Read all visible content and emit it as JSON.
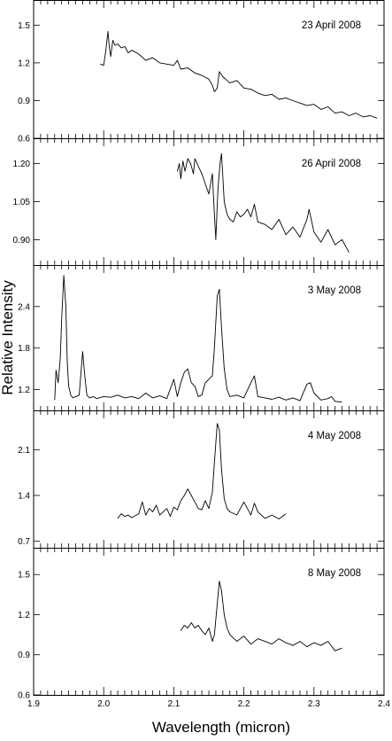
{
  "chart_data": {
    "type": "line",
    "xlabel": "Wavelength (micron)",
    "ylabel": "Relative Intensity",
    "xlim": [
      1.9,
      2.4
    ],
    "x_ticks": [
      "1.9",
      "2.0",
      "2.1",
      "2.2",
      "2.3",
      "2.4"
    ],
    "panels": [
      {
        "name": "23 April 2008",
        "ylim": [
          0.6,
          1.7
        ],
        "y_ticks": [
          "0.6",
          "0.9",
          "1.2",
          "1.5"
        ],
        "x": [
          1.995,
          2.0,
          2.003,
          2.006,
          2.008,
          2.01,
          2.013,
          2.016,
          2.02,
          2.025,
          2.03,
          2.035,
          2.04,
          2.05,
          2.06,
          2.07,
          2.08,
          2.09,
          2.1,
          2.105,
          2.11,
          2.12,
          2.13,
          2.14,
          2.15,
          2.155,
          2.158,
          2.162,
          2.165,
          2.17,
          2.18,
          2.19,
          2.2,
          2.21,
          2.22,
          2.23,
          2.24,
          2.25,
          2.26,
          2.27,
          2.28,
          2.29,
          2.3,
          2.31,
          2.32,
          2.33,
          2.34,
          2.35,
          2.36,
          2.37,
          2.38,
          2.39
        ],
        "y": [
          1.19,
          1.18,
          1.3,
          1.45,
          1.33,
          1.25,
          1.38,
          1.34,
          1.35,
          1.32,
          1.33,
          1.28,
          1.3,
          1.27,
          1.22,
          1.24,
          1.2,
          1.19,
          1.18,
          1.22,
          1.15,
          1.16,
          1.12,
          1.1,
          1.07,
          1.02,
          0.97,
          1.0,
          1.13,
          1.09,
          1.04,
          1.06,
          1.0,
          0.99,
          0.96,
          0.94,
          0.95,
          0.91,
          0.92,
          0.9,
          0.88,
          0.86,
          0.87,
          0.83,
          0.85,
          0.8,
          0.81,
          0.78,
          0.8,
          0.77,
          0.78,
          0.76
        ]
      },
      {
        "name": "26 April 2008",
        "ylim": [
          0.8,
          1.3
        ],
        "y_ticks": [
          "0.90",
          "1.05",
          "1.20"
        ],
        "x": [
          2.105,
          2.108,
          2.11,
          2.113,
          2.116,
          2.12,
          2.124,
          2.128,
          2.13,
          2.135,
          2.14,
          2.145,
          2.15,
          2.155,
          2.158,
          2.16,
          2.163,
          2.166,
          2.168,
          2.17,
          2.172,
          2.176,
          2.18,
          2.185,
          2.19,
          2.195,
          2.2,
          2.205,
          2.21,
          2.215,
          2.22,
          2.23,
          2.24,
          2.25,
          2.26,
          2.27,
          2.28,
          2.29,
          2.293,
          2.3,
          2.31,
          2.32,
          2.33,
          2.34,
          2.35
        ],
        "y": [
          1.17,
          1.2,
          1.14,
          1.21,
          1.17,
          1.22,
          1.2,
          1.16,
          1.22,
          1.19,
          1.16,
          1.12,
          1.08,
          1.16,
          1.0,
          0.9,
          1.1,
          1.2,
          1.24,
          1.15,
          1.05,
          1.0,
          0.98,
          0.97,
          1.01,
          0.99,
          1.0,
          1.02,
          0.99,
          1.04,
          0.97,
          0.96,
          0.94,
          0.98,
          0.92,
          0.95,
          0.91,
          0.98,
          1.02,
          0.93,
          0.89,
          0.94,
          0.88,
          0.9,
          0.85
        ]
      },
      {
        "name": "3 May 2008",
        "ylim": [
          0.9,
          3.0
        ],
        "y_ticks": [
          "1.2",
          "1.8",
          "2.4"
        ],
        "x": [
          1.93,
          1.932,
          1.935,
          1.938,
          1.94,
          1.943,
          1.946,
          1.948,
          1.95,
          1.953,
          1.956,
          1.96,
          1.965,
          1.97,
          1.973,
          1.976,
          1.98,
          1.985,
          1.99,
          2.0,
          2.01,
          2.02,
          2.03,
          2.04,
          2.05,
          2.06,
          2.07,
          2.08,
          2.09,
          2.1,
          2.105,
          2.11,
          2.115,
          2.12,
          2.125,
          2.13,
          2.135,
          2.14,
          2.145,
          2.15,
          2.155,
          2.158,
          2.162,
          2.165,
          2.168,
          2.172,
          2.176,
          2.18,
          2.19,
          2.2,
          2.21,
          2.215,
          2.22,
          2.23,
          2.24,
          2.25,
          2.26,
          2.27,
          2.28,
          2.29,
          2.295,
          2.3,
          2.31,
          2.32,
          2.325,
          2.33,
          2.34
        ],
        "y": [
          1.05,
          1.48,
          1.3,
          1.65,
          2.22,
          2.85,
          2.4,
          1.6,
          1.25,
          1.12,
          1.08,
          1.1,
          1.12,
          1.75,
          1.4,
          1.12,
          1.08,
          1.1,
          1.07,
          1.1,
          1.09,
          1.12,
          1.08,
          1.1,
          1.07,
          1.15,
          1.08,
          1.11,
          1.07,
          1.35,
          1.1,
          1.3,
          1.45,
          1.5,
          1.3,
          1.25,
          1.1,
          1.12,
          1.3,
          1.35,
          1.4,
          1.8,
          2.55,
          2.65,
          2.1,
          1.5,
          1.2,
          1.1,
          1.12,
          1.08,
          1.3,
          1.4,
          1.1,
          1.08,
          1.06,
          1.09,
          1.05,
          1.08,
          1.04,
          1.28,
          1.3,
          1.15,
          1.05,
          1.07,
          1.1,
          1.03,
          1.02
        ]
      },
      {
        "name": "4 May 2008",
        "ylim": [
          0.6,
          2.7
        ],
        "y_ticks": [
          "0.7",
          "1.4",
          "2.1"
        ],
        "x": [
          2.02,
          2.025,
          2.03,
          2.035,
          2.04,
          2.05,
          2.055,
          2.06,
          2.065,
          2.07,
          2.075,
          2.08,
          2.09,
          2.095,
          2.1,
          2.105,
          2.11,
          2.115,
          2.12,
          2.125,
          2.13,
          2.135,
          2.14,
          2.145,
          2.15,
          2.155,
          2.158,
          2.162,
          2.165,
          2.168,
          2.172,
          2.176,
          2.18,
          2.19,
          2.2,
          2.205,
          2.21,
          2.215,
          2.22,
          2.23,
          2.24,
          2.25,
          2.255,
          2.26
        ],
        "y": [
          1.05,
          1.12,
          1.08,
          1.1,
          1.06,
          1.12,
          1.3,
          1.1,
          1.2,
          1.15,
          1.25,
          1.1,
          1.2,
          1.08,
          1.22,
          1.18,
          1.32,
          1.4,
          1.5,
          1.4,
          1.3,
          1.2,
          1.18,
          1.32,
          1.2,
          1.45,
          1.9,
          2.5,
          2.4,
          1.8,
          1.35,
          1.2,
          1.15,
          1.1,
          1.3,
          1.2,
          1.1,
          1.28,
          1.15,
          1.05,
          1.1,
          1.04,
          1.08,
          1.12
        ]
      },
      {
        "name": "8 May 2008",
        "ylim": [
          0.6,
          1.7
        ],
        "y_ticks": [
          "0.6",
          "0.9",
          "1.2",
          "1.5"
        ],
        "x": [
          2.11,
          2.115,
          2.12,
          2.125,
          2.13,
          2.135,
          2.14,
          2.145,
          2.15,
          2.155,
          2.158,
          2.162,
          2.165,
          2.168,
          2.172,
          2.176,
          2.18,
          2.19,
          2.2,
          2.21,
          2.22,
          2.23,
          2.24,
          2.25,
          2.26,
          2.27,
          2.28,
          2.29,
          2.3,
          2.31,
          2.32,
          2.33,
          2.34
        ],
        "y": [
          1.08,
          1.12,
          1.1,
          1.14,
          1.1,
          1.12,
          1.08,
          1.05,
          1.1,
          1.0,
          1.05,
          1.28,
          1.45,
          1.38,
          1.2,
          1.1,
          1.05,
          1.0,
          1.04,
          0.98,
          1.02,
          1.0,
          0.98,
          1.02,
          0.99,
          0.97,
          1.0,
          0.96,
          0.99,
          0.97,
          1.0,
          0.93,
          0.95
        ]
      }
    ]
  }
}
